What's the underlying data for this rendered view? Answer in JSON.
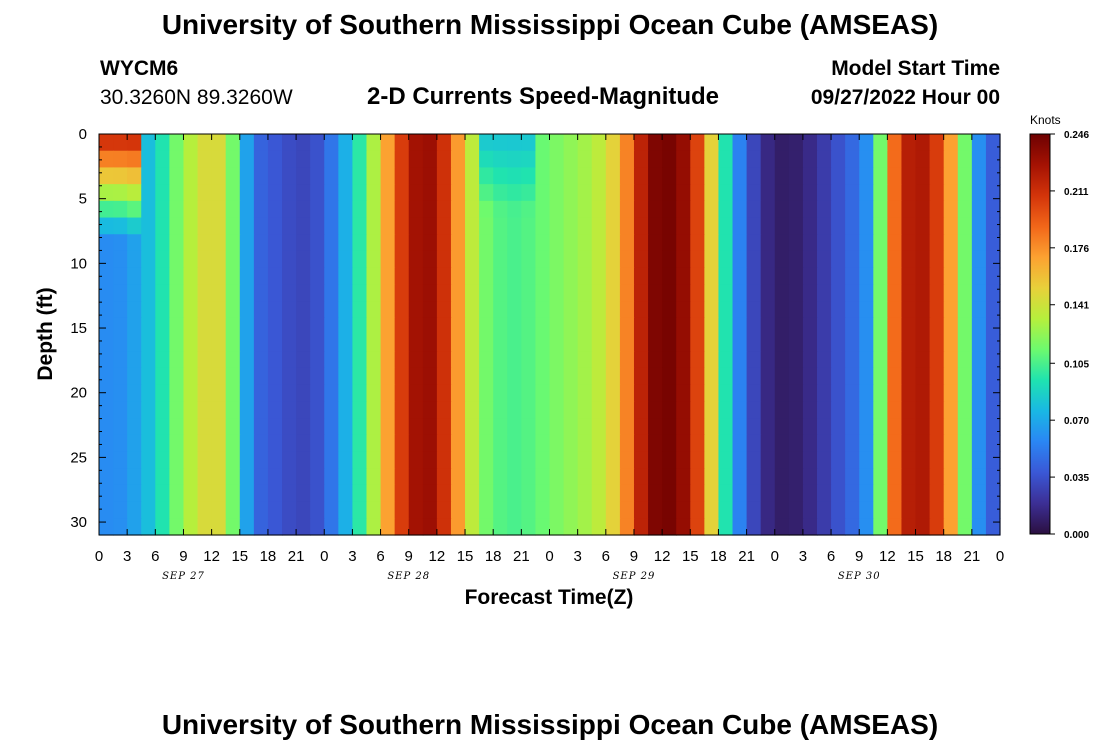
{
  "header": {
    "title": "University of Southern Mississippi Ocean Cube (AMSEAS)",
    "station_id": "WYCM6",
    "station_coords": "30.3260N  89.3260W",
    "subtitle": "2-D Currents Speed-Magnitude",
    "model_start_label": "Model Start Time",
    "model_start_value": "09/27/2022 Hour 00"
  },
  "footer": {
    "title": "University of Southern Mississippi Ocean Cube (AMSEAS)"
  },
  "chart_data": {
    "type": "heatmap",
    "title": "2-D Currents Speed-Magnitude",
    "xlabel": "Forecast Time(Z)",
    "ylabel": "Depth (ft)",
    "x_ticks": [
      "0",
      "3",
      "6",
      "9",
      "12",
      "15",
      "18",
      "21",
      "0",
      "3",
      "6",
      "9",
      "12",
      "15",
      "18",
      "21",
      "0",
      "3",
      "6",
      "9",
      "12",
      "15",
      "18",
      "21",
      "0",
      "3",
      "6",
      "9",
      "12",
      "15",
      "18",
      "21",
      "0"
    ],
    "day_labels": [
      "SEP 27",
      "SEP 28",
      "SEP 29",
      "SEP 30"
    ],
    "y_ticks": [
      "0",
      "5",
      "10",
      "15",
      "20",
      "25",
      "30"
    ],
    "ylim": [
      0,
      31
    ],
    "xlim_hours": [
      0,
      96
    ],
    "colorbar": {
      "unit": "Knots",
      "ticks": [
        "0.246",
        "0.211",
        "0.176",
        "0.141",
        "0.105",
        "0.070",
        "0.035",
        "0.000"
      ],
      "range": [
        0,
        0.246
      ],
      "colors": [
        "#2b0f40",
        "#3c2f95",
        "#3a58d6",
        "#2a86f4",
        "#19b8e4",
        "#1fe3b0",
        "#6dfa6e",
        "#b6ef3c",
        "#e8d03a",
        "#fca131",
        "#f26619",
        "#d3340a",
        "#a41203",
        "#6e0101"
      ]
    },
    "speed_profile_hours": [
      0,
      1.5,
      3,
      4.5,
      6,
      7.5,
      9,
      10.5,
      12,
      13.5,
      15,
      16.5,
      18,
      19.5,
      21,
      22.5,
      24,
      25.5,
      27,
      28.5,
      30,
      31.5,
      33,
      34.5,
      36,
      37.5,
      39,
      40.5,
      42,
      43.5,
      45,
      46.5,
      48,
      49.5,
      51,
      52.5,
      54,
      55.5,
      57,
      58.5,
      60,
      61.5,
      63,
      64.5,
      66,
      67.5,
      69,
      70.5,
      72,
      73.5,
      75,
      76.5,
      78,
      79.5,
      81,
      82.5,
      84,
      85.5,
      87,
      88.5,
      90,
      91.5,
      93,
      94.5,
      96
    ],
    "speed_profile_knots": [
      0.06,
      0.058,
      0.062,
      0.072,
      0.085,
      0.105,
      0.125,
      0.14,
      0.15,
      0.14,
      0.09,
      0.045,
      0.04,
      0.035,
      0.03,
      0.03,
      0.04,
      0.06,
      0.085,
      0.11,
      0.15,
      0.19,
      0.22,
      0.235,
      0.225,
      0.195,
      0.15,
      0.12,
      0.11,
      0.105,
      0.105,
      0.11,
      0.115,
      0.12,
      0.125,
      0.13,
      0.14,
      0.16,
      0.2,
      0.235,
      0.245,
      0.24,
      0.225,
      0.18,
      0.12,
      0.07,
      0.04,
      0.02,
      0.01,
      0.008,
      0.012,
      0.02,
      0.03,
      0.04,
      0.05,
      0.07,
      0.16,
      0.215,
      0.225,
      0.22,
      0.19,
      0.15,
      0.08,
      0.04,
      0.04
    ],
    "surface_features": [
      {
        "description": "strong surface current early SEP 27",
        "hour_start": 0,
        "hour_end": 5,
        "depth_max_ft": 8,
        "knots": 0.22
      },
      {
        "description": "weaker near-surface layer midday SEP 28",
        "hour_start": 40,
        "hour_end": 46,
        "depth_max_ft": 6,
        "knots": 0.08
      }
    ]
  }
}
